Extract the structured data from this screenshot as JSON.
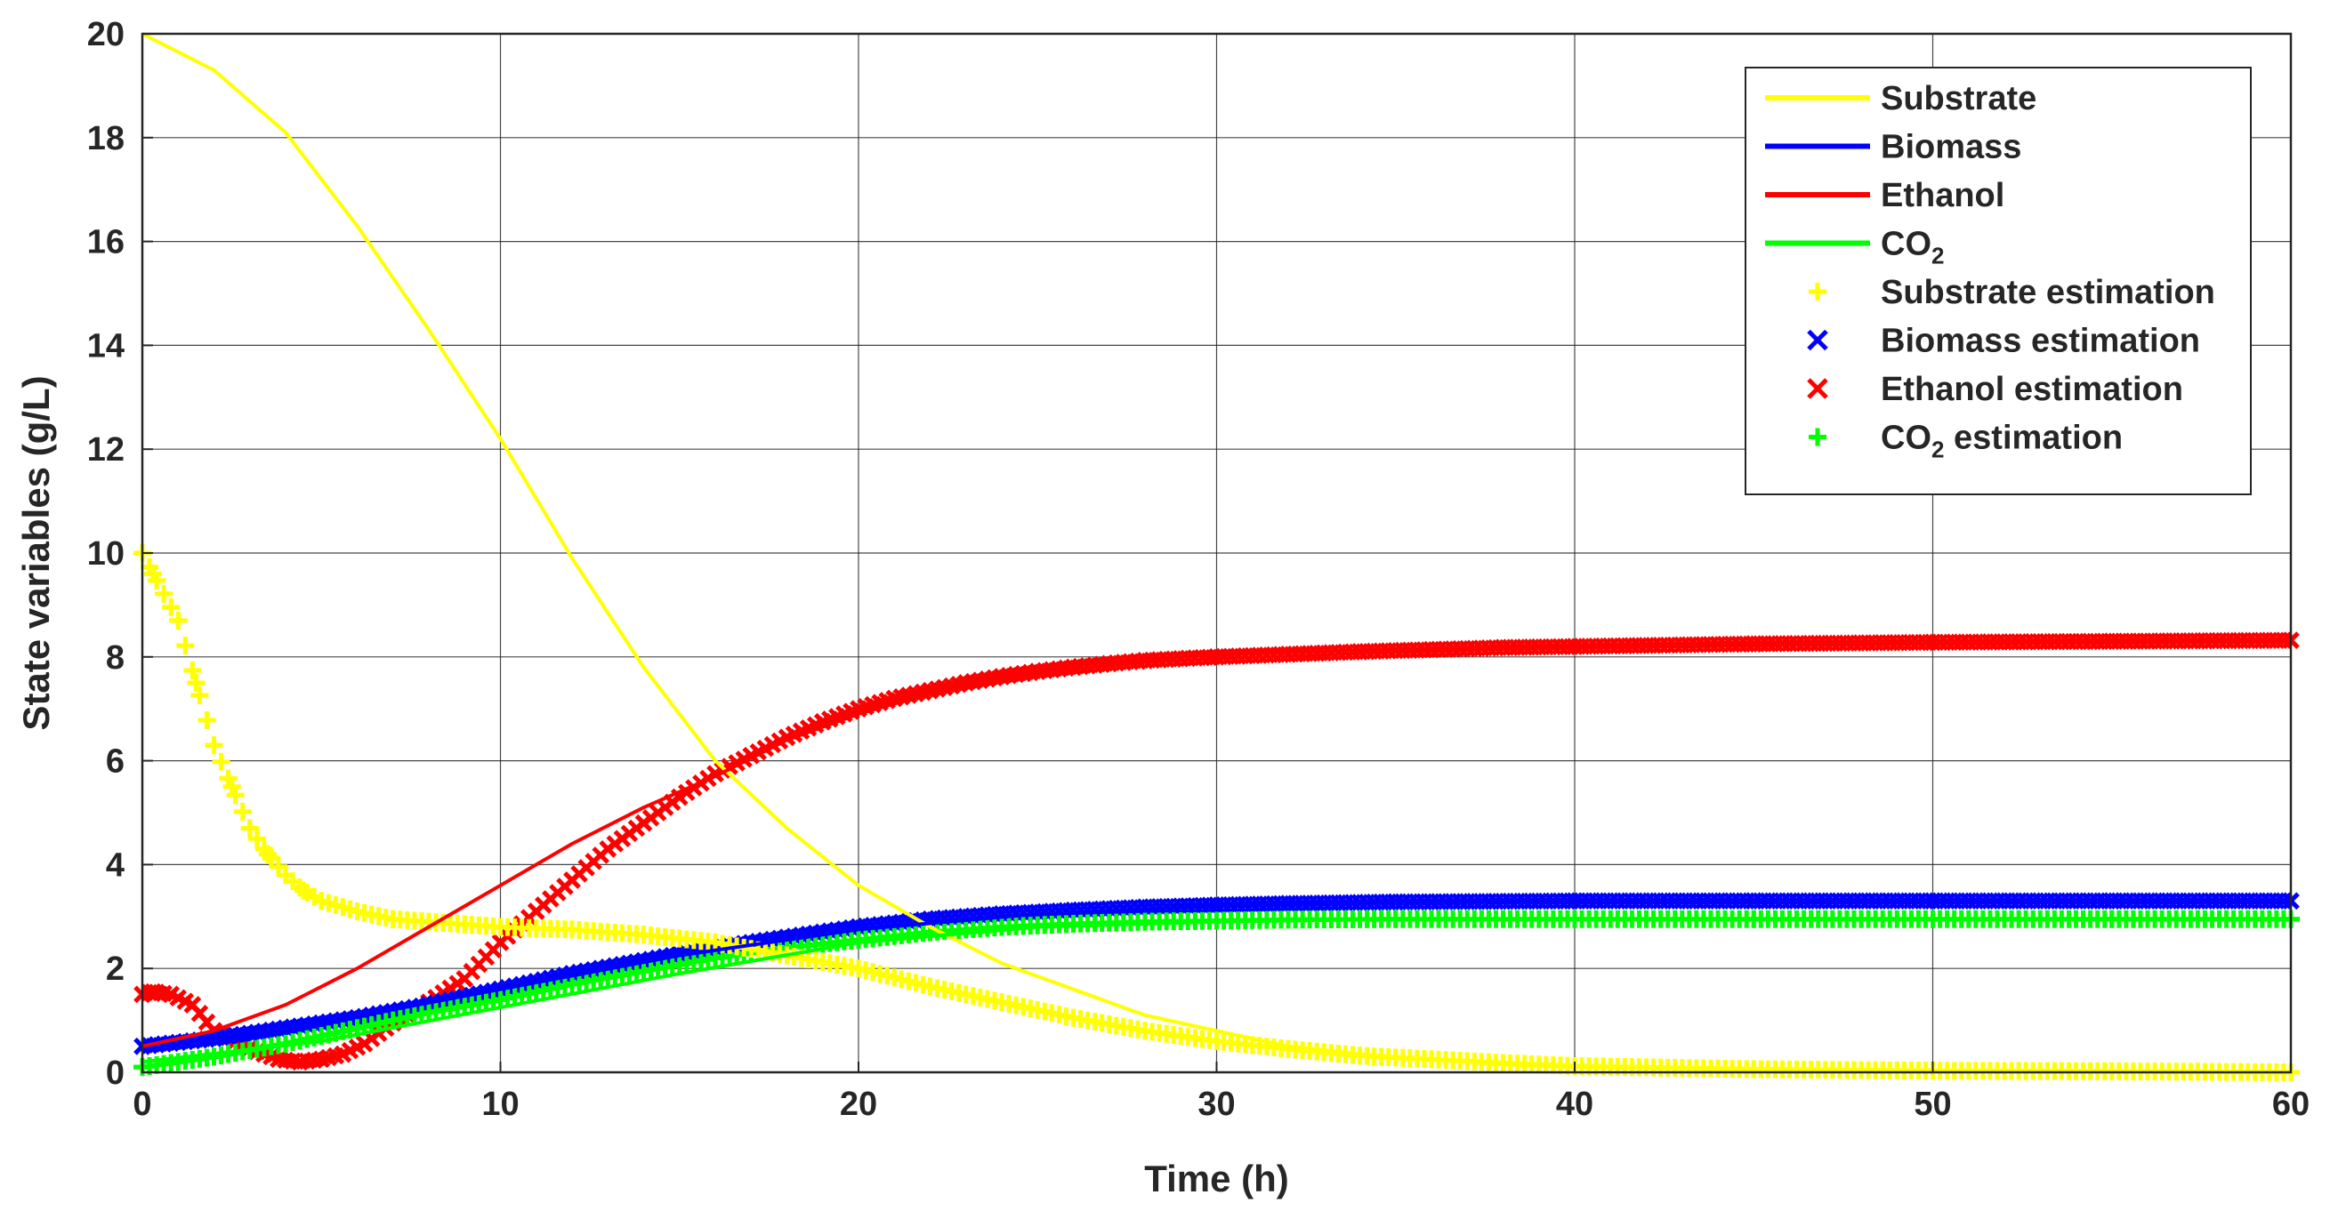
{
  "chart_data": {
    "type": "line",
    "xlabel": "Time (h)",
    "ylabel": "State variables (g/L)",
    "xlim": [
      0,
      60
    ],
    "ylim": [
      0,
      20
    ],
    "xticks": [
      0,
      10,
      20,
      30,
      40,
      50,
      60
    ],
    "yticks": [
      0,
      2,
      4,
      6,
      8,
      10,
      12,
      14,
      16,
      18,
      20
    ],
    "grid": true,
    "legend_position": "top-right",
    "series": [
      {
        "name": "Substrate",
        "kind": "line",
        "color": "#ffff00",
        "x": [
          0,
          2,
          4,
          6,
          8,
          10,
          12,
          14,
          16,
          18,
          20,
          22,
          24,
          26,
          28,
          30,
          32,
          34,
          36,
          38,
          40,
          45,
          50,
          55,
          60
        ],
        "y": [
          20,
          19.3,
          18.1,
          16.3,
          14.3,
          12.2,
          9.9,
          7.8,
          6.0,
          4.7,
          3.6,
          2.8,
          2.1,
          1.6,
          1.1,
          0.8,
          0.5,
          0.35,
          0.25,
          0.15,
          0.1,
          0.05,
          0.02,
          0.01,
          0
        ]
      },
      {
        "name": "Biomass",
        "kind": "line",
        "color": "#0000ff",
        "x": [
          0,
          5,
          10,
          15,
          20,
          25,
          30,
          35,
          40,
          50,
          60
        ],
        "y": [
          0.5,
          0.95,
          1.6,
          2.25,
          2.75,
          3.05,
          3.2,
          3.28,
          3.3,
          3.3,
          3.3
        ]
      },
      {
        "name": "Ethanol",
        "kind": "line",
        "color": "#ff0000",
        "x": [
          0,
          2,
          4,
          6,
          8,
          10,
          12,
          14,
          16,
          18,
          20,
          22,
          24,
          26,
          28,
          30,
          35,
          40,
          50,
          60
        ],
        "y": [
          0.5,
          0.8,
          1.3,
          2.0,
          2.8,
          3.6,
          4.4,
          5.1,
          5.7,
          6.4,
          6.9,
          7.3,
          7.6,
          7.85,
          7.95,
          8.05,
          8.15,
          8.2,
          8.25,
          8.3
        ]
      },
      {
        "name": "CO2",
        "kind": "line",
        "color": "#00ff00",
        "x": [
          0,
          5,
          10,
          15,
          20,
          25,
          30,
          35,
          40,
          50,
          60
        ],
        "y": [
          0.2,
          0.6,
          1.25,
          1.9,
          2.5,
          2.8,
          2.9,
          2.95,
          2.95,
          2.95,
          2.95
        ]
      },
      {
        "name": "Substrate estimation",
        "kind": "markers",
        "marker": "plus",
        "color": "#ffff00",
        "x": [
          0,
          0.3,
          1,
          1.5,
          2,
          2.5,
          3,
          3.5,
          4,
          4.5,
          5,
          6,
          7,
          8,
          9,
          10,
          12,
          14,
          16,
          18,
          20,
          22,
          24,
          26,
          28,
          30,
          32,
          34,
          36,
          38,
          40,
          45,
          50,
          55,
          60
        ],
        "y": [
          10,
          9.6,
          8.7,
          7.5,
          6.3,
          5.5,
          4.7,
          4.2,
          3.8,
          3.5,
          3.3,
          3.1,
          2.95,
          2.9,
          2.85,
          2.8,
          2.75,
          2.65,
          2.5,
          2.25,
          2.0,
          1.65,
          1.35,
          1.05,
          0.8,
          0.6,
          0.45,
          0.32,
          0.25,
          0.18,
          0.12,
          0.06,
          0.03,
          0.02,
          0
        ]
      },
      {
        "name": "Biomass estimation",
        "kind": "markers",
        "marker": "x",
        "color": "#0000ff",
        "x": [
          0,
          2,
          4,
          6,
          8,
          10,
          12,
          14,
          16,
          18,
          20,
          22,
          24,
          26,
          28,
          30,
          32,
          35,
          40,
          45,
          50,
          55,
          60
        ],
        "y": [
          0.5,
          0.65,
          0.85,
          1.05,
          1.3,
          1.6,
          1.9,
          2.15,
          2.4,
          2.6,
          2.8,
          2.95,
          3.05,
          3.12,
          3.18,
          3.22,
          3.25,
          3.28,
          3.3,
          3.3,
          3.3,
          3.3,
          3.3
        ]
      },
      {
        "name": "Ethanol estimation",
        "kind": "markers",
        "marker": "x",
        "color": "#ff0000",
        "x": [
          0,
          0.3,
          0.8,
          1.4,
          2,
          2.6,
          3.2,
          3.8,
          4.4,
          5,
          5.6,
          6.2,
          7,
          8,
          9,
          10,
          11,
          12,
          13,
          14,
          15,
          16,
          17,
          18,
          19,
          20,
          21,
          22,
          23,
          24,
          25,
          26,
          27,
          28,
          30,
          32,
          34,
          36,
          38,
          40,
          45,
          50,
          55,
          60
        ],
        "y": [
          1.5,
          1.55,
          1.5,
          1.3,
          0.8,
          0.6,
          0.4,
          0.25,
          0.2,
          0.25,
          0.35,
          0.55,
          0.95,
          1.35,
          1.8,
          2.5,
          3.1,
          3.7,
          4.3,
          4.8,
          5.3,
          5.75,
          6.1,
          6.45,
          6.75,
          7.0,
          7.2,
          7.35,
          7.5,
          7.62,
          7.72,
          7.8,
          7.87,
          7.93,
          8.0,
          8.05,
          8.1,
          8.14,
          8.18,
          8.2,
          8.25,
          8.28,
          8.3,
          8.32
        ]
      },
      {
        "name": "CO2 estimation",
        "kind": "markers",
        "marker": "plus",
        "color": "#00ff00",
        "x": [
          0,
          2,
          4,
          6,
          8,
          10,
          12,
          14,
          16,
          18,
          20,
          22,
          24,
          26,
          28,
          30,
          32,
          35,
          40,
          45,
          50,
          55,
          60
        ],
        "y": [
          0.1,
          0.3,
          0.55,
          0.85,
          1.15,
          1.4,
          1.7,
          1.95,
          2.2,
          2.4,
          2.55,
          2.7,
          2.8,
          2.86,
          2.9,
          2.92,
          2.94,
          2.95,
          2.95,
          2.95,
          2.95,
          2.95,
          2.95
        ]
      }
    ]
  }
}
